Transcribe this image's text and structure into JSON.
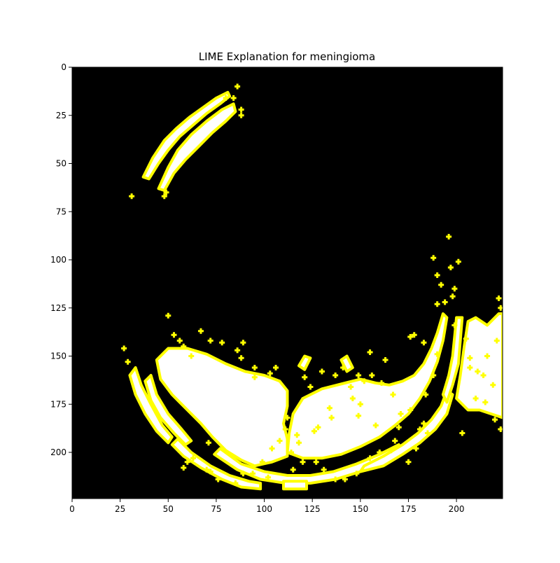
{
  "chart_data": {
    "type": "heatmap",
    "title": "LIME Explanation for meningioma",
    "xlabel": "",
    "ylabel": "",
    "xlim": [
      0,
      224
    ],
    "ylim": [
      224,
      0
    ],
    "xticks": [
      0,
      25,
      50,
      75,
      100,
      125,
      150,
      175,
      200
    ],
    "yticks": [
      0,
      25,
      50,
      75,
      100,
      125,
      150,
      175,
      200
    ],
    "grid": false,
    "legend": "none",
    "colors": {
      "background": "#000000",
      "highlight": "#ffffff",
      "boundary": "#ffff00"
    },
    "regions": [
      {
        "name": "upper-arc-outer",
        "points": [
          [
            37,
            57
          ],
          [
            42,
            47
          ],
          [
            48,
            38
          ],
          [
            54,
            32
          ],
          [
            61,
            26
          ],
          [
            68,
            21
          ],
          [
            75,
            16
          ],
          [
            81,
            13
          ],
          [
            82,
            15
          ],
          [
            77,
            19
          ],
          [
            70,
            24
          ],
          [
            63,
            30
          ],
          [
            56,
            36
          ],
          [
            50,
            43
          ],
          [
            45,
            50
          ],
          [
            40,
            58
          ]
        ]
      },
      {
        "name": "upper-arc-inner",
        "points": [
          [
            45,
            63
          ],
          [
            50,
            52
          ],
          [
            55,
            43
          ],
          [
            62,
            35
          ],
          [
            70,
            28
          ],
          [
            78,
            22
          ],
          [
            84,
            19
          ],
          [
            85,
            23
          ],
          [
            80,
            28
          ],
          [
            73,
            34
          ],
          [
            66,
            41
          ],
          [
            59,
            48
          ],
          [
            53,
            55
          ],
          [
            48,
            64
          ]
        ]
      },
      {
        "name": "lower-left-mass",
        "points": [
          [
            44,
            152
          ],
          [
            50,
            146
          ],
          [
            60,
            146
          ],
          [
            70,
            149
          ],
          [
            80,
            154
          ],
          [
            90,
            158
          ],
          [
            100,
            160
          ],
          [
            108,
            163
          ],
          [
            112,
            168
          ],
          [
            112,
            176
          ],
          [
            110,
            185
          ],
          [
            112,
            193
          ],
          [
            112,
            202
          ],
          [
            104,
            205
          ],
          [
            95,
            207
          ],
          [
            88,
            204
          ],
          [
            80,
            199
          ],
          [
            73,
            192
          ],
          [
            67,
            185
          ],
          [
            60,
            178
          ],
          [
            52,
            170
          ],
          [
            46,
            162
          ]
        ]
      },
      {
        "name": "lower-right-mass",
        "points": [
          [
            112,
            200
          ],
          [
            113,
            190
          ],
          [
            115,
            180
          ],
          [
            120,
            172
          ],
          [
            130,
            167
          ],
          [
            142,
            164
          ],
          [
            150,
            162
          ],
          [
            158,
            164
          ],
          [
            165,
            165
          ],
          [
            172,
            163
          ],
          [
            178,
            160
          ],
          [
            183,
            154
          ],
          [
            187,
            146
          ],
          [
            190,
            138
          ],
          [
            193,
            128
          ],
          [
            195,
            130
          ],
          [
            193,
            142
          ],
          [
            190,
            153
          ],
          [
            186,
            163
          ],
          [
            181,
            172
          ],
          [
            175,
            180
          ],
          [
            168,
            186
          ],
          [
            160,
            192
          ],
          [
            150,
            197
          ],
          [
            140,
            201
          ],
          [
            130,
            203
          ],
          [
            120,
            203
          ]
        ]
      },
      {
        "name": "right-edge-mass",
        "points": [
          [
            200,
            172
          ],
          [
            202,
            160
          ],
          [
            204,
            145
          ],
          [
            206,
            132
          ],
          [
            210,
            130
          ],
          [
            216,
            134
          ],
          [
            222,
            128
          ],
          [
            224,
            128
          ],
          [
            224,
            182
          ],
          [
            218,
            180
          ],
          [
            212,
            178
          ],
          [
            206,
            178
          ]
        ]
      },
      {
        "name": "left-curve-1",
        "points": [
          [
            30,
            160
          ],
          [
            33,
            156
          ],
          [
            36,
            165
          ],
          [
            41,
            175
          ],
          [
            47,
            186
          ],
          [
            52,
            192
          ],
          [
            50,
            195
          ],
          [
            44,
            189
          ],
          [
            38,
            180
          ],
          [
            33,
            170
          ]
        ]
      },
      {
        "name": "left-curve-2",
        "points": [
          [
            38,
            163
          ],
          [
            41,
            160
          ],
          [
            44,
            170
          ],
          [
            50,
            180
          ],
          [
            57,
            188
          ],
          [
            62,
            194
          ],
          [
            59,
            196
          ],
          [
            53,
            190
          ],
          [
            46,
            182
          ],
          [
            41,
            173
          ]
        ]
      },
      {
        "name": "left-curve-3",
        "points": [
          [
            52,
            196
          ],
          [
            55,
            193
          ],
          [
            62,
            200
          ],
          [
            72,
            207
          ],
          [
            82,
            212
          ],
          [
            92,
            215
          ],
          [
            98,
            216
          ],
          [
            98,
            219
          ],
          [
            88,
            218
          ],
          [
            78,
            214
          ],
          [
            67,
            208
          ],
          [
            58,
            202
          ]
        ]
      },
      {
        "name": "bottom-band-1",
        "points": [
          [
            74,
            201
          ],
          [
            77,
            198
          ],
          [
            88,
            206
          ],
          [
            100,
            210
          ],
          [
            112,
            212
          ],
          [
            124,
            212
          ],
          [
            136,
            210
          ],
          [
            148,
            206
          ],
          [
            160,
            201
          ],
          [
            170,
            196
          ],
          [
            172,
            199
          ],
          [
            162,
            205
          ],
          [
            150,
            210
          ],
          [
            137,
            214
          ],
          [
            124,
            216
          ],
          [
            111,
            216
          ],
          [
            98,
            214
          ],
          [
            86,
            209
          ]
        ]
      },
      {
        "name": "bottom-band-2",
        "points": [
          [
            150,
            210
          ],
          [
            152,
            207
          ],
          [
            162,
            202
          ],
          [
            172,
            196
          ],
          [
            180,
            190
          ],
          [
            187,
            183
          ],
          [
            192,
            176
          ],
          [
            195,
            168
          ],
          [
            198,
            170
          ],
          [
            195,
            180
          ],
          [
            189,
            188
          ],
          [
            181,
            195
          ],
          [
            172,
            201
          ],
          [
            162,
            207
          ]
        ]
      },
      {
        "name": "right-band-1",
        "points": [
          [
            193,
            170
          ],
          [
            196,
            160
          ],
          [
            198,
            150
          ],
          [
            199,
            140
          ],
          [
            200,
            130
          ],
          [
            203,
            130
          ],
          [
            202,
            142
          ],
          [
            201,
            154
          ],
          [
            198,
            165
          ],
          [
            195,
            174
          ]
        ]
      },
      {
        "name": "small-blob-1",
        "points": [
          [
            118,
            155
          ],
          [
            121,
            150
          ],
          [
            124,
            151
          ],
          [
            121,
            157
          ]
        ]
      },
      {
        "name": "small-blob-2",
        "points": [
          [
            140,
            152
          ],
          [
            143,
            150
          ],
          [
            146,
            156
          ],
          [
            143,
            158
          ]
        ]
      },
      {
        "name": "bottom-rectangle",
        "points": [
          [
            110,
            215
          ],
          [
            122,
            215
          ],
          [
            122,
            219
          ],
          [
            110,
            219
          ]
        ]
      }
    ],
    "speckles": [
      [
        31,
        67
      ],
      [
        27,
        146
      ],
      [
        29,
        153
      ],
      [
        48,
        67
      ],
      [
        49,
        65
      ],
      [
        86,
        10
      ],
      [
        88,
        22
      ],
      [
        88,
        25
      ],
      [
        80,
        16
      ],
      [
        84,
        16
      ],
      [
        50,
        129
      ],
      [
        53,
        139
      ],
      [
        67,
        137
      ],
      [
        72,
        142
      ],
      [
        78,
        143
      ],
      [
        89,
        143
      ],
      [
        95,
        156
      ],
      [
        71,
        195
      ],
      [
        70,
        209
      ],
      [
        94,
        211
      ],
      [
        99,
        205
      ],
      [
        104,
        198
      ],
      [
        117,
        191
      ],
      [
        118,
        195
      ],
      [
        114,
        200
      ],
      [
        126,
        189
      ],
      [
        128,
        187
      ],
      [
        134,
        177
      ],
      [
        135,
        182
      ],
      [
        146,
        172
      ],
      [
        150,
        175
      ],
      [
        155,
        148
      ],
      [
        161,
        164
      ],
      [
        167,
        170
      ],
      [
        171,
        180
      ],
      [
        176,
        140
      ],
      [
        178,
        139
      ],
      [
        188,
        99
      ],
      [
        190,
        108
      ],
      [
        192,
        113
      ],
      [
        194,
        122
      ],
      [
        190,
        123
      ],
      [
        198,
        119
      ],
      [
        199,
        115
      ],
      [
        201,
        101
      ],
      [
        197,
        104
      ],
      [
        196,
        88
      ],
      [
        222,
        120
      ],
      [
        223,
        125
      ],
      [
        223,
        188
      ],
      [
        220,
        183
      ],
      [
        215,
        174
      ],
      [
        214,
        160
      ],
      [
        211,
        158
      ],
      [
        207,
        156
      ],
      [
        203,
        190
      ],
      [
        185,
        190
      ],
      [
        183,
        185
      ],
      [
        181,
        188
      ],
      [
        179,
        198
      ],
      [
        175,
        205
      ],
      [
        168,
        194
      ],
      [
        166,
        199
      ],
      [
        160,
        200
      ],
      [
        155,
        203
      ],
      [
        148,
        211
      ],
      [
        142,
        214
      ],
      [
        137,
        214
      ],
      [
        131,
        209
      ],
      [
        127,
        205
      ],
      [
        120,
        205
      ],
      [
        115,
        209
      ],
      [
        102,
        213
      ],
      [
        89,
        211
      ],
      [
        85,
        216
      ],
      [
        76,
        214
      ],
      [
        72,
        210
      ],
      [
        63,
        203
      ],
      [
        60,
        205
      ],
      [
        58,
        208
      ],
      [
        95,
        161
      ],
      [
        103,
        159
      ],
      [
        106,
        156
      ],
      [
        88,
        151
      ],
      [
        86,
        147
      ],
      [
        62,
        150
      ],
      [
        58,
        145
      ],
      [
        56,
        142
      ],
      [
        112,
        182
      ],
      [
        111,
        188
      ],
      [
        108,
        194
      ],
      [
        121,
        161
      ],
      [
        124,
        166
      ],
      [
        130,
        158
      ],
      [
        137,
        160
      ],
      [
        141,
        156
      ],
      [
        149,
        160
      ],
      [
        152,
        163
      ],
      [
        156,
        160
      ],
      [
        163,
        152
      ],
      [
        145,
        166
      ],
      [
        149,
        181
      ],
      [
        158,
        186
      ],
      [
        170,
        187
      ],
      [
        176,
        178
      ],
      [
        184,
        170
      ],
      [
        188,
        160
      ],
      [
        190,
        149
      ],
      [
        183,
        143
      ],
      [
        199,
        134
      ],
      [
        205,
        141
      ],
      [
        207,
        151
      ],
      [
        210,
        172
      ],
      [
        216,
        150
      ],
      [
        219,
        165
      ],
      [
        221,
        142
      ]
    ]
  }
}
